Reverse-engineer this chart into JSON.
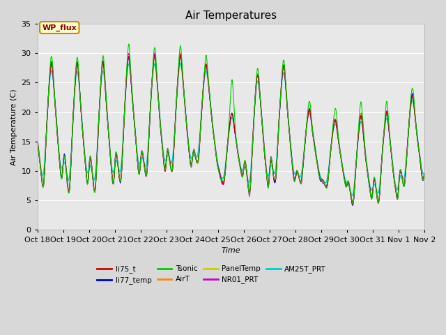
{
  "title": "Air Temperatures",
  "xlabel": "Time",
  "ylabel": "Air Temperature (C)",
  "ylim": [
    0,
    35
  ],
  "tick_labels": [
    "Oct 18",
    "Oct 19",
    "Oct 20",
    "Oct 21",
    "Oct 22",
    "Oct 23",
    "Oct 24",
    "Oct 25",
    "Oct 26",
    "Oct 27",
    "Oct 28",
    "Oct 29",
    "Oct 30",
    "Oct 31",
    "Nov 1",
    "Nov 2"
  ],
  "series_colors": {
    "li75_t": "#cc0000",
    "li77_temp": "#0000cc",
    "Tsonic": "#00cc00",
    "AirT": "#ff8800",
    "PanelTemp": "#cccc00",
    "NR01_PRT": "#cc00cc",
    "AM25T_PRT": "#00cccc"
  },
  "legend_label": "WP_flux",
  "day_peaks": [
    31,
    31,
    31,
    32,
    32,
    32,
    30,
    21,
    29,
    30,
    22,
    20,
    21,
    22,
    25,
    26
  ],
  "day_mins": [
    5,
    4,
    4,
    6,
    7,
    8,
    10,
    7,
    4,
    6,
    7,
    6,
    3,
    3,
    6,
    7
  ],
  "tsonic_extra": [
    1.5,
    1.0,
    1.5,
    2.0,
    1.5,
    1.5,
    2.0,
    6.5,
    1.0,
    1.0,
    1.5,
    2.5,
    2.5,
    2.0,
    1.5,
    1.5
  ]
}
